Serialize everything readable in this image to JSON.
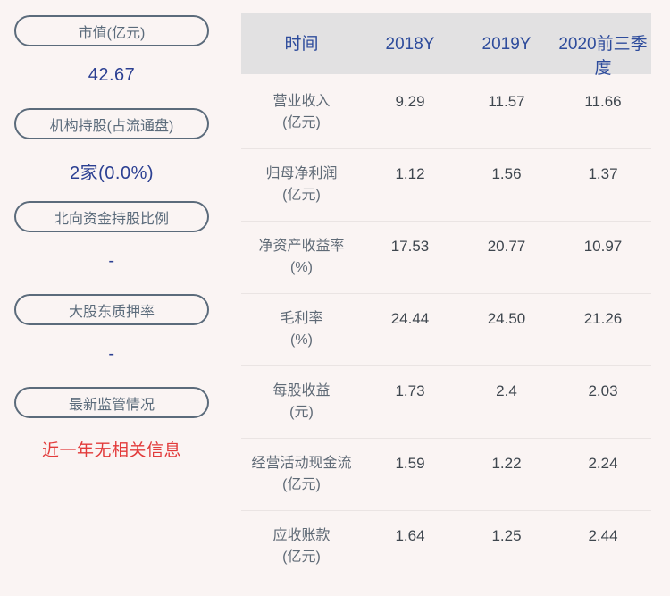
{
  "sidebar": {
    "items": [
      {
        "label": "市值(亿元)",
        "value": "42.67",
        "style": "blue"
      },
      {
        "label": "机构持股(占流通盘)",
        "value": "2家(0.0%)",
        "style": "blue"
      },
      {
        "label": "北向资金持股比例",
        "value": "-",
        "style": "blue"
      },
      {
        "label": "大股东质押率",
        "value": "-",
        "style": "blue"
      },
      {
        "label": "最新监管情况",
        "value": "近一年无相关信息",
        "style": "red"
      }
    ]
  },
  "table": {
    "header": [
      "时间",
      "2018Y",
      "2019Y",
      "2020前三季度"
    ],
    "rows": [
      {
        "label": "营业收入",
        "unit": "(亿元)",
        "values": [
          "9.29",
          "11.57",
          "11.66"
        ]
      },
      {
        "label": "归母净利润",
        "unit": "(亿元)",
        "values": [
          "1.12",
          "1.56",
          "1.37"
        ]
      },
      {
        "label": "净资产收益率",
        "unit": "(%)",
        "values": [
          "17.53",
          "20.77",
          "10.97"
        ]
      },
      {
        "label": "毛利率",
        "unit": "(%)",
        "values": [
          "24.44",
          "24.50",
          "21.26"
        ]
      },
      {
        "label": "每股收益",
        "unit": "(元)",
        "values": [
          "1.73",
          "2.4",
          "2.03"
        ]
      },
      {
        "label": "经营活动现金流",
        "unit": "(亿元)",
        "values": [
          "1.59",
          "1.22",
          "2.24"
        ]
      },
      {
        "label": "应收账款",
        "unit": "(亿元)",
        "values": [
          "1.64",
          "1.25",
          "2.44"
        ]
      }
    ]
  },
  "colors": {
    "page_bg": "#faf4f3",
    "header_bg": "#e2e1e2",
    "header_text": "#2e4c9c",
    "pill_border": "#5b6b7b",
    "sidebar_value_blue": "#2b3f92",
    "alert_red": "#e23a3a",
    "row_label_gray": "#5f6a76",
    "row_value_gray": "#3e464e",
    "row_divider": "#eae4e3"
  }
}
